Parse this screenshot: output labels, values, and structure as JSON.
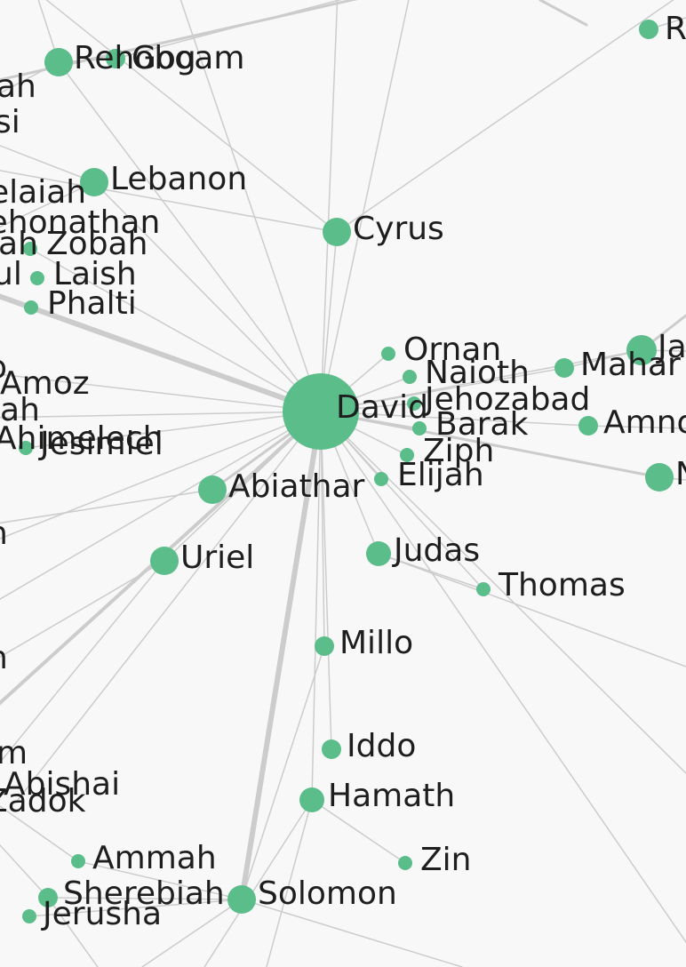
{
  "nodes": {
    "david": "David",
    "cyrus": "Cyrus",
    "lebanon": "Lebanon",
    "rehoboam": "Rehoboam",
    "gog": "Gog",
    "r_top": "R",
    "zobah": "Zobah",
    "laish": "Laish",
    "phalti": "Phalti",
    "jehonathan": "Jehonathan",
    "elaiah": "elaiah",
    "ah_top": "ah",
    "si_top": "si",
    "ian": "iah",
    "ul": "ul",
    "amoz": "Amoz",
    "o_left": "o",
    "iah_left": "iah",
    "ahimelech": "Ahimelech",
    "jesimiel": "Jesimiel",
    "ornan": "Ornan",
    "naioth": "Naioth",
    "jehozabad": "Jehozabad",
    "barak": "Barak",
    "ziph": "Ziph",
    "elijah": "Elijah",
    "maha": "Mahar",
    "ja": "Ja",
    "amno": "Amno",
    "n_right": "N",
    "abiathar": "Abiathar",
    "uriel": "Uriel",
    "judas": "Judas",
    "thomas": "Thomas",
    "millo": "Millo",
    "iddo": "Iddo",
    "hamath": "Hamath",
    "zin": "Zin",
    "solomon": "Solomon",
    "ammah": "Ammah",
    "sherebiah": "Sherebiah",
    "jerusha": "Jerusha",
    "abishai": "Abishai",
    "zadok": "Zadok",
    "m_left": "m",
    "n_left1": "n",
    "n_left2": "n"
  }
}
